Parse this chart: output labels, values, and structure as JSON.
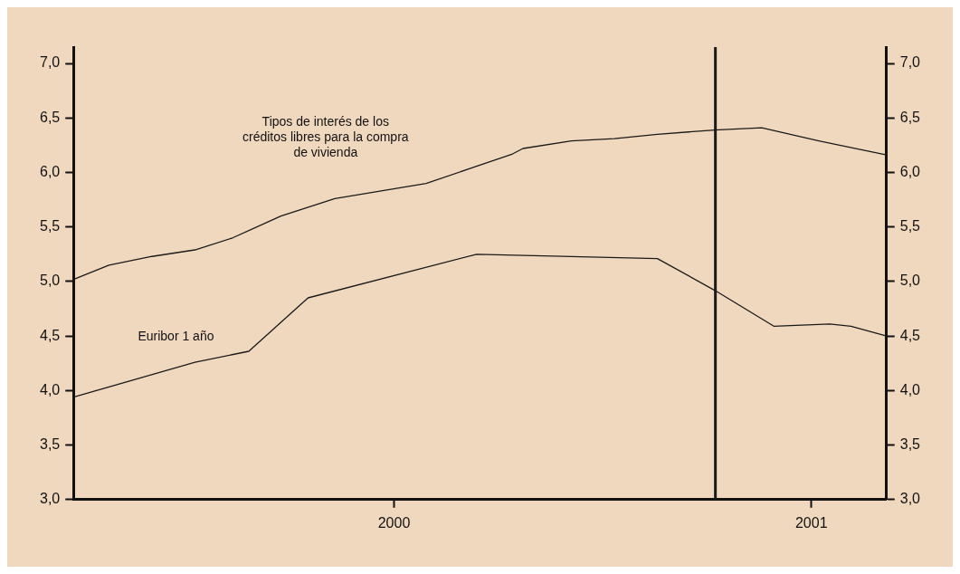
{
  "chart_data": {
    "type": "line",
    "xlim": [
      1999.232,
      2001.18
    ],
    "xticks": [
      2000,
      2001
    ],
    "ylim": [
      3,
      7.15
    ],
    "yticks": [
      {
        "value": 3,
        "label": "3,0"
      },
      {
        "value": 3.5,
        "label": "3,5"
      },
      {
        "value": 4,
        "label": "4,0"
      },
      {
        "value": 4.5,
        "label": "4,5"
      },
      {
        "value": 5,
        "label": "5,0"
      },
      {
        "value": 5.5,
        "label": "5,5"
      },
      {
        "value": 6,
        "label": "6,0"
      },
      {
        "value": 6.5,
        "label": "6,5"
      },
      {
        "value": 7,
        "label": "7,0"
      }
    ],
    "y2lim": [
      3,
      7.15
    ],
    "y2ticks": [
      {
        "value": 3,
        "label": "3,0"
      },
      {
        "value": 3.5,
        "label": "3,5"
      },
      {
        "value": 4,
        "label": "4,0"
      },
      {
        "value": 4.5,
        "label": "4,5"
      },
      {
        "value": 5,
        "label": "5,0"
      },
      {
        "value": 5.5,
        "label": "5,5"
      },
      {
        "value": 6,
        "label": "6,0"
      },
      {
        "value": 6.5,
        "label": "6,5"
      },
      {
        "value": 7,
        "label": "7,0"
      }
    ],
    "grid": false,
    "legend": false,
    "series": [
      {
        "name": "Tipos de interés de los créditos libres para la compra de vivienda",
        "color": "#1a1a1a",
        "x": [
          1999.232,
          1999.317,
          1999.42,
          1999.523,
          1999.613,
          1999.729,
          1999.858,
          2000.077,
          2000.193,
          2000.284,
          2000.309,
          2000.425,
          2000.528,
          2000.631,
          2000.768,
          2000.881,
          2001.018,
          2001.18
        ],
        "values": [
          5.02,
          5.15,
          5.23,
          5.29,
          5.4,
          5.6,
          5.76,
          5.9,
          6.05,
          6.17,
          6.22,
          6.29,
          6.31,
          6.35,
          6.39,
          6.41,
          6.29,
          6.16
        ]
      },
      {
        "name": "Euribor 1 año",
        "color": "#1a1a1a",
        "x": [
          1999.232,
          1999.523,
          1999.652,
          1999.794,
          2000.198,
          2000.631,
          2000.768,
          2000.91,
          2001.044,
          2001.095,
          2001.18
        ],
        "values": [
          3.94,
          4.26,
          4.36,
          4.85,
          5.25,
          5.21,
          4.92,
          4.59,
          4.61,
          4.59,
          4.5
        ]
      }
    ],
    "ref_lines": [
      {
        "axis": "x",
        "value": 2000.77,
        "color": "#1a1a1a"
      }
    ]
  }
}
